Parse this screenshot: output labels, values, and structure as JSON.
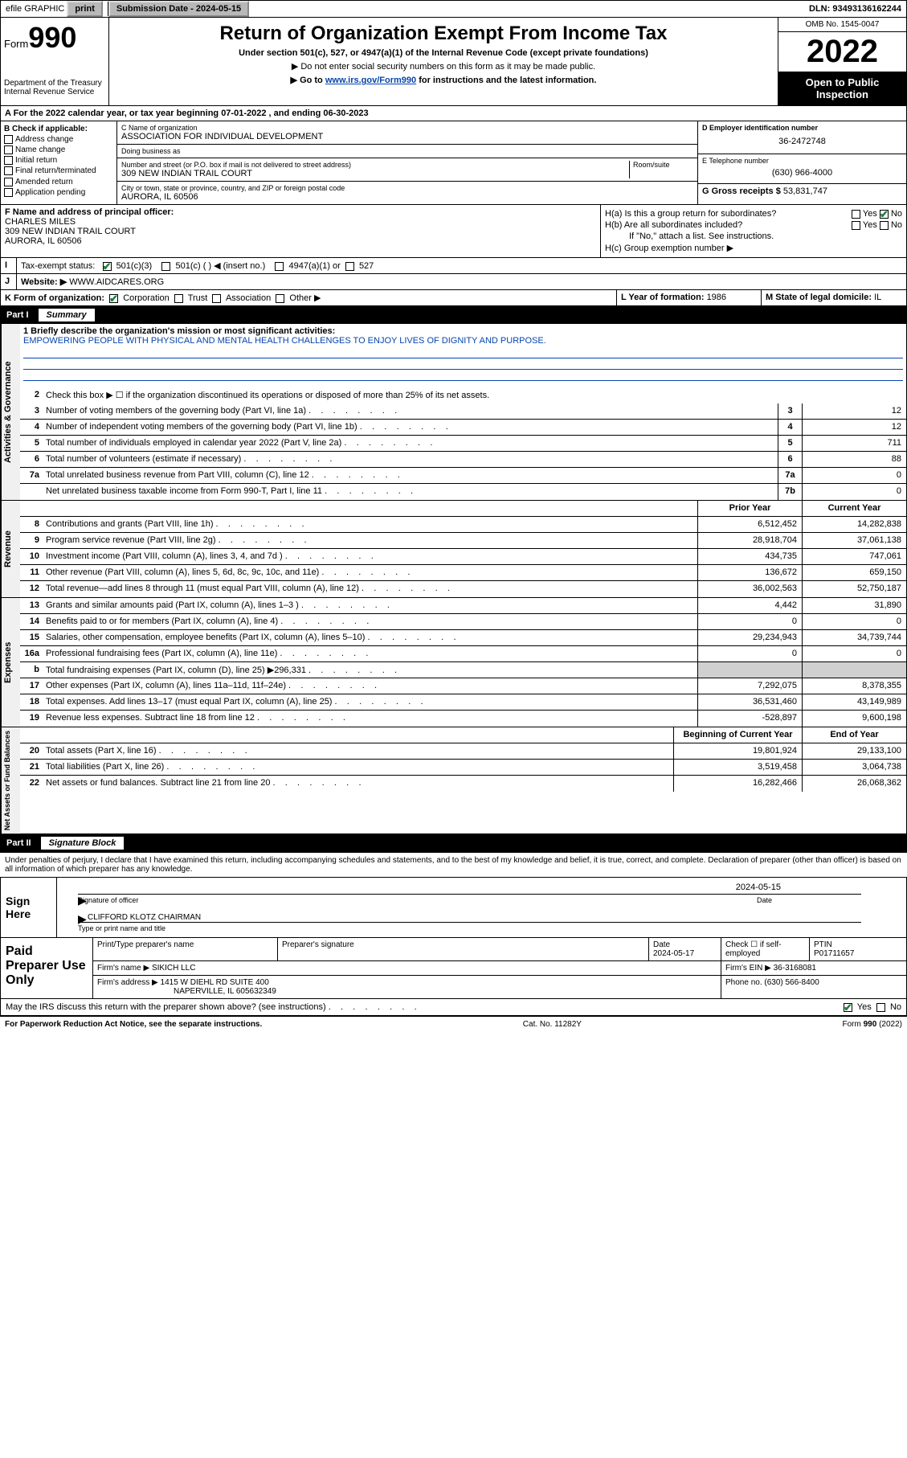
{
  "topbar": {
    "efile": "efile GRAPHIC",
    "print": "print",
    "submission_label": "Submission Date - ",
    "submission_date": "2024-05-15",
    "dln_label": "DLN: ",
    "dln": "93493136162244"
  },
  "header": {
    "form_word": "Form",
    "form_num": "990",
    "dept": "Department of the Treasury",
    "irs": "Internal Revenue Service",
    "title": "Return of Organization Exempt From Income Tax",
    "subtitle": "Under section 501(c), 527, or 4947(a)(1) of the Internal Revenue Code (except private foundations)",
    "note1": "▶ Do not enter social security numbers on this form as it may be made public.",
    "note2_pre": "▶ Go to ",
    "note2_link": "www.irs.gov/Form990",
    "note2_post": " for instructions and the latest information.",
    "omb": "OMB No. 1545-0047",
    "year": "2022",
    "open": "Open to Public Inspection"
  },
  "A": {
    "text": "A For the 2022 calendar year, or tax year beginning 07-01-2022    , and ending 06-30-2023"
  },
  "B": {
    "label": "B Check if applicable:",
    "items": [
      "Address change",
      "Name change",
      "Initial return",
      "Final return/terminated",
      "Amended return",
      "Application pending"
    ]
  },
  "C": {
    "name_label": "C Name of organization",
    "name": "ASSOCIATION FOR INDIVIDUAL DEVELOPMENT",
    "dba_label": "Doing business as",
    "dba": "",
    "street_label": "Number and street (or P.O. box if mail is not delivered to street address)",
    "room_label": "Room/suite",
    "street": "309 NEW INDIAN TRAIL COURT",
    "city_label": "City or town, state or province, country, and ZIP or foreign postal code",
    "city": "AURORA, IL  60506"
  },
  "D": {
    "label": "D Employer identification number",
    "val": "36-2472748"
  },
  "E": {
    "label": "E Telephone number",
    "val": "(630) 966-4000"
  },
  "G": {
    "label": "G Gross receipts $ ",
    "val": "53,831,747"
  },
  "F": {
    "label": "F  Name and address of principal officer:",
    "name": "CHARLES MILES",
    "addr1": "309 NEW INDIAN TRAIL COURT",
    "addr2": "AURORA, IL  60506"
  },
  "H": {
    "a": "H(a)  Is this a group return for subordinates?",
    "b": "H(b)  Are all subordinates included?",
    "b_note": "If \"No,\" attach a list. See instructions.",
    "c": "H(c)  Group exemption number ▶",
    "yes": "Yes",
    "no": "No"
  },
  "I": {
    "label": "Tax-exempt status:",
    "opt1": "501(c)(3)",
    "opt2": "501(c) (  ) ◀ (insert no.)",
    "opt3": "4947(a)(1) or",
    "opt4": "527"
  },
  "J": {
    "label": "Website: ▶",
    "val": "WWW.AIDCARES.ORG"
  },
  "K": {
    "label": "K Form of organization:",
    "opts": [
      "Corporation",
      "Trust",
      "Association",
      "Other ▶"
    ]
  },
  "L": {
    "label": "L Year of formation: ",
    "val": "1986"
  },
  "M": {
    "label": "M State of legal domicile: ",
    "val": "IL"
  },
  "part1": {
    "label": "Part I",
    "title": "Summary"
  },
  "mission": {
    "q": "1  Briefly describe the organization's mission or most significant activities:",
    "text": "EMPOWERING PEOPLE WITH PHYSICAL AND MENTAL HEALTH CHALLENGES TO ENJOY LIVES OF DIGNITY AND PURPOSE."
  },
  "gov": {
    "l2": "Check this box ▶ ☐  if the organization discontinued its operations or disposed of more than 25% of its net assets.",
    "lines": [
      {
        "n": "3",
        "d": "Number of voting members of the governing body (Part VI, line 1a)",
        "b": "3",
        "v": "12"
      },
      {
        "n": "4",
        "d": "Number of independent voting members of the governing body (Part VI, line 1b)",
        "b": "4",
        "v": "12"
      },
      {
        "n": "5",
        "d": "Total number of individuals employed in calendar year 2022 (Part V, line 2a)",
        "b": "5",
        "v": "711"
      },
      {
        "n": "6",
        "d": "Total number of volunteers (estimate if necessary)",
        "b": "6",
        "v": "88"
      },
      {
        "n": "7a",
        "d": "Total unrelated business revenue from Part VIII, column (C), line 12",
        "b": "7a",
        "v": "0"
      },
      {
        "n": "",
        "d": "Net unrelated business taxable income from Form 990-T, Part I, line 11",
        "b": "7b",
        "v": "0"
      }
    ]
  },
  "cols": {
    "prior": "Prior Year",
    "current": "Current Year",
    "boy": "Beginning of Current Year",
    "eoy": "End of Year"
  },
  "rev": [
    {
      "n": "8",
      "d": "Contributions and grants (Part VIII, line 1h)",
      "p": "6,512,452",
      "c": "14,282,838"
    },
    {
      "n": "9",
      "d": "Program service revenue (Part VIII, line 2g)",
      "p": "28,918,704",
      "c": "37,061,138"
    },
    {
      "n": "10",
      "d": "Investment income (Part VIII, column (A), lines 3, 4, and 7d )",
      "p": "434,735",
      "c": "747,061"
    },
    {
      "n": "11",
      "d": "Other revenue (Part VIII, column (A), lines 5, 6d, 8c, 9c, 10c, and 11e)",
      "p": "136,672",
      "c": "659,150"
    },
    {
      "n": "12",
      "d": "Total revenue—add lines 8 through 11 (must equal Part VIII, column (A), line 12)",
      "p": "36,002,563",
      "c": "52,750,187"
    }
  ],
  "exp": [
    {
      "n": "13",
      "d": "Grants and similar amounts paid (Part IX, column (A), lines 1–3 )",
      "p": "4,442",
      "c": "31,890"
    },
    {
      "n": "14",
      "d": "Benefits paid to or for members (Part IX, column (A), line 4)",
      "p": "0",
      "c": "0"
    },
    {
      "n": "15",
      "d": "Salaries, other compensation, employee benefits (Part IX, column (A), lines 5–10)",
      "p": "29,234,943",
      "c": "34,739,744"
    },
    {
      "n": "16a",
      "d": "Professional fundraising fees (Part IX, column (A), line 11e)",
      "p": "0",
      "c": "0"
    },
    {
      "n": "b",
      "d": "Total fundraising expenses (Part IX, column (D), line 25) ▶296,331",
      "p": "",
      "c": "",
      "shade": true
    },
    {
      "n": "17",
      "d": "Other expenses (Part IX, column (A), lines 11a–11d, 11f–24e)",
      "p": "7,292,075",
      "c": "8,378,355"
    },
    {
      "n": "18",
      "d": "Total expenses. Add lines 13–17 (must equal Part IX, column (A), line 25)",
      "p": "36,531,460",
      "c": "43,149,989"
    },
    {
      "n": "19",
      "d": "Revenue less expenses. Subtract line 18 from line 12",
      "p": "-528,897",
      "c": "9,600,198"
    }
  ],
  "net": [
    {
      "n": "20",
      "d": "Total assets (Part X, line 16)",
      "p": "19,801,924",
      "c": "29,133,100"
    },
    {
      "n": "21",
      "d": "Total liabilities (Part X, line 26)",
      "p": "3,519,458",
      "c": "3,064,738"
    },
    {
      "n": "22",
      "d": "Net assets or fund balances. Subtract line 21 from line 20",
      "p": "16,282,466",
      "c": "26,068,362"
    }
  ],
  "vtabs": {
    "gov": "Activities & Governance",
    "rev": "Revenue",
    "exp": "Expenses",
    "net": "Net Assets or Fund Balances"
  },
  "part2": {
    "label": "Part II",
    "title": "Signature Block"
  },
  "penalties": "Under penalties of perjury, I declare that I have examined this return, including accompanying schedules and statements, and to the best of my knowledge and belief, it is true, correct, and complete. Declaration of preparer (other than officer) is based on all information of which preparer has any knowledge.",
  "sign": {
    "here": "Sign Here",
    "sig_officer": "Signature of officer",
    "date": "Date",
    "sig_date": "2024-05-15",
    "name_title": "CLIFFORD KLOTZ  CHAIRMAN",
    "name_label": "Type or print name and title"
  },
  "paid": {
    "title": "Paid Preparer Use Only",
    "h_name": "Print/Type preparer's name",
    "h_sig": "Preparer's signature",
    "h_date": "Date",
    "date": "2024-05-17",
    "check": "Check ☐ if self-employed",
    "ptin_l": "PTIN",
    "ptin": "P01711657",
    "firm_name_l": "Firm's name    ▶",
    "firm_name": "SIKICH LLC",
    "firm_ein_l": "Firm's EIN ▶",
    "firm_ein": "36-3168081",
    "firm_addr_l": "Firm's address ▶",
    "firm_addr1": "1415 W DIEHL RD SUITE 400",
    "firm_addr2": "NAPERVILLE, IL  605632349",
    "phone_l": "Phone no. ",
    "phone": "(630) 566-8400"
  },
  "may_discuss": "May the IRS discuss this return with the preparer shown above? (see instructions)",
  "footer": {
    "left": "For Paperwork Reduction Act Notice, see the separate instructions.",
    "mid": "Cat. No. 11282Y",
    "right": "Form 990 (2022)"
  }
}
